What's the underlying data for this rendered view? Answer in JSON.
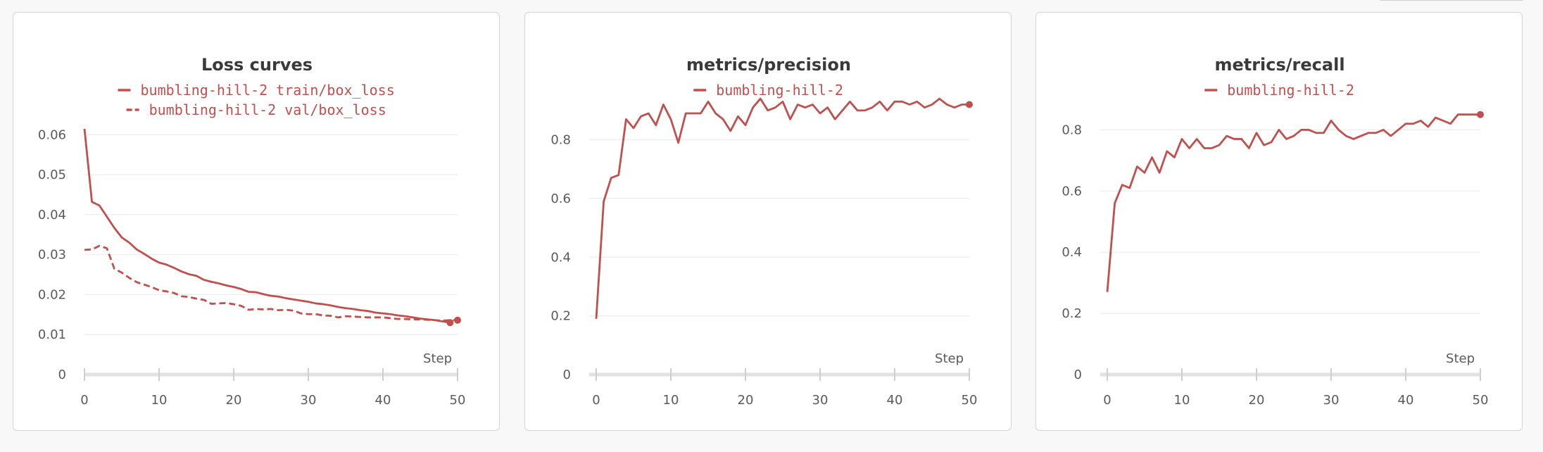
{
  "chart_data": [
    {
      "type": "line",
      "title": "Loss curves",
      "xlabel": "Step",
      "xlim": [
        0,
        50
      ],
      "ylim": [
        0,
        0.062
      ],
      "xticks": [
        "0",
        "10",
        "20",
        "30",
        "40",
        "50"
      ],
      "yticks": [
        {
          "label": "0",
          "value": 0
        },
        {
          "label": "0.01",
          "value": 0.01
        },
        {
          "label": "0.02",
          "value": 0.02
        },
        {
          "label": "0.03",
          "value": 0.03
        },
        {
          "label": "0.04",
          "value": 0.04
        },
        {
          "label": "0.05",
          "value": 0.05
        },
        {
          "label": "0.06",
          "value": 0.06
        }
      ],
      "grid": true,
      "legend_position": "top",
      "series": [
        {
          "name": "bumbling-hill-2 train/box_loss",
          "style": "solid",
          "color": "#c0504d",
          "values": [
            0.0615,
            0.0432,
            0.0423,
            0.0395,
            0.0367,
            0.0343,
            0.033,
            0.0313,
            0.0302,
            0.029,
            0.028,
            0.0275,
            0.0267,
            0.0258,
            0.0251,
            0.0247,
            0.0237,
            0.0232,
            0.0228,
            0.0223,
            0.0219,
            0.0214,
            0.0207,
            0.0206,
            0.0201,
            0.0197,
            0.0195,
            0.0191,
            0.0188,
            0.0185,
            0.0182,
            0.0178,
            0.0176,
            0.0173,
            0.0169,
            0.0166,
            0.0164,
            0.0161,
            0.0159,
            0.0155,
            0.0153,
            0.0151,
            0.0148,
            0.0146,
            0.0143,
            0.014,
            0.0138,
            0.0136,
            0.0133,
            0.013
          ]
        },
        {
          "name": "bumbling-hill-2 val/box_loss",
          "style": "dashed",
          "color": "#c0504d",
          "values": [
            0.0312,
            0.0313,
            0.0322,
            0.0316,
            0.0265,
            0.0255,
            0.0242,
            0.0231,
            0.0225,
            0.0219,
            0.0211,
            0.0208,
            0.0204,
            0.0196,
            0.0194,
            0.019,
            0.0187,
            0.0177,
            0.0178,
            0.0179,
            0.0176,
            0.0172,
            0.0162,
            0.0164,
            0.0163,
            0.0164,
            0.0161,
            0.0162,
            0.016,
            0.0153,
            0.0151,
            0.0151,
            0.0148,
            0.0147,
            0.0143,
            0.0146,
            0.0145,
            0.0144,
            0.0143,
            0.0143,
            0.0143,
            0.0141,
            0.0139,
            0.0139,
            0.0138,
            0.0138,
            0.0137,
            0.0136,
            0.0135,
            0.0136,
            0.0136
          ]
        }
      ]
    },
    {
      "type": "line",
      "title": "metrics/precision",
      "xlabel": "Step",
      "xlim": [
        0,
        50
      ],
      "ylim": [
        0,
        0.95
      ],
      "xticks": [
        "0",
        "10",
        "20",
        "30",
        "40",
        "50"
      ],
      "yticks": [
        {
          "label": "0",
          "value": 0
        },
        {
          "label": "0.2",
          "value": 0.2
        },
        {
          "label": "0.4",
          "value": 0.4
        },
        {
          "label": "0.6",
          "value": 0.6
        },
        {
          "label": "0.8",
          "value": 0.8
        }
      ],
      "grid": true,
      "legend_position": "top",
      "series": [
        {
          "name": "bumbling-hill-2",
          "style": "solid",
          "color": "#c0504d",
          "values": [
            0.19,
            0.59,
            0.67,
            0.68,
            0.87,
            0.84,
            0.88,
            0.89,
            0.85,
            0.92,
            0.87,
            0.79,
            0.89,
            0.89,
            0.89,
            0.93,
            0.89,
            0.87,
            0.83,
            0.88,
            0.85,
            0.91,
            0.94,
            0.9,
            0.91,
            0.93,
            0.87,
            0.92,
            0.91,
            0.92,
            0.89,
            0.91,
            0.87,
            0.9,
            0.93,
            0.9,
            0.9,
            0.91,
            0.93,
            0.9,
            0.93,
            0.93,
            0.92,
            0.93,
            0.91,
            0.92,
            0.94,
            0.92,
            0.91,
            0.92,
            0.92
          ]
        }
      ]
    },
    {
      "type": "line",
      "title": "metrics/recall",
      "xlabel": "Step",
      "xlim": [
        0,
        50
      ],
      "ylim": [
        0,
        0.87
      ],
      "xticks": [
        "0",
        "10",
        "20",
        "30",
        "40",
        "50"
      ],
      "yticks": [
        {
          "label": "0",
          "value": 0
        },
        {
          "label": "0.2",
          "value": 0.2
        },
        {
          "label": "0.4",
          "value": 0.4
        },
        {
          "label": "0.6",
          "value": 0.6
        },
        {
          "label": "0.8",
          "value": 0.8
        }
      ],
      "grid": true,
      "legend_position": "top",
      "series": [
        {
          "name": "bumbling-hill-2",
          "style": "solid",
          "color": "#c0504d",
          "values": [
            0.27,
            0.56,
            0.62,
            0.61,
            0.68,
            0.66,
            0.71,
            0.66,
            0.73,
            0.71,
            0.77,
            0.74,
            0.77,
            0.74,
            0.74,
            0.75,
            0.78,
            0.77,
            0.77,
            0.74,
            0.79,
            0.75,
            0.76,
            0.8,
            0.77,
            0.78,
            0.8,
            0.8,
            0.79,
            0.79,
            0.83,
            0.8,
            0.78,
            0.77,
            0.78,
            0.79,
            0.79,
            0.8,
            0.78,
            0.8,
            0.82,
            0.82,
            0.83,
            0.81,
            0.84,
            0.83,
            0.82,
            0.85,
            0.85,
            0.85,
            0.85
          ]
        }
      ]
    }
  ]
}
